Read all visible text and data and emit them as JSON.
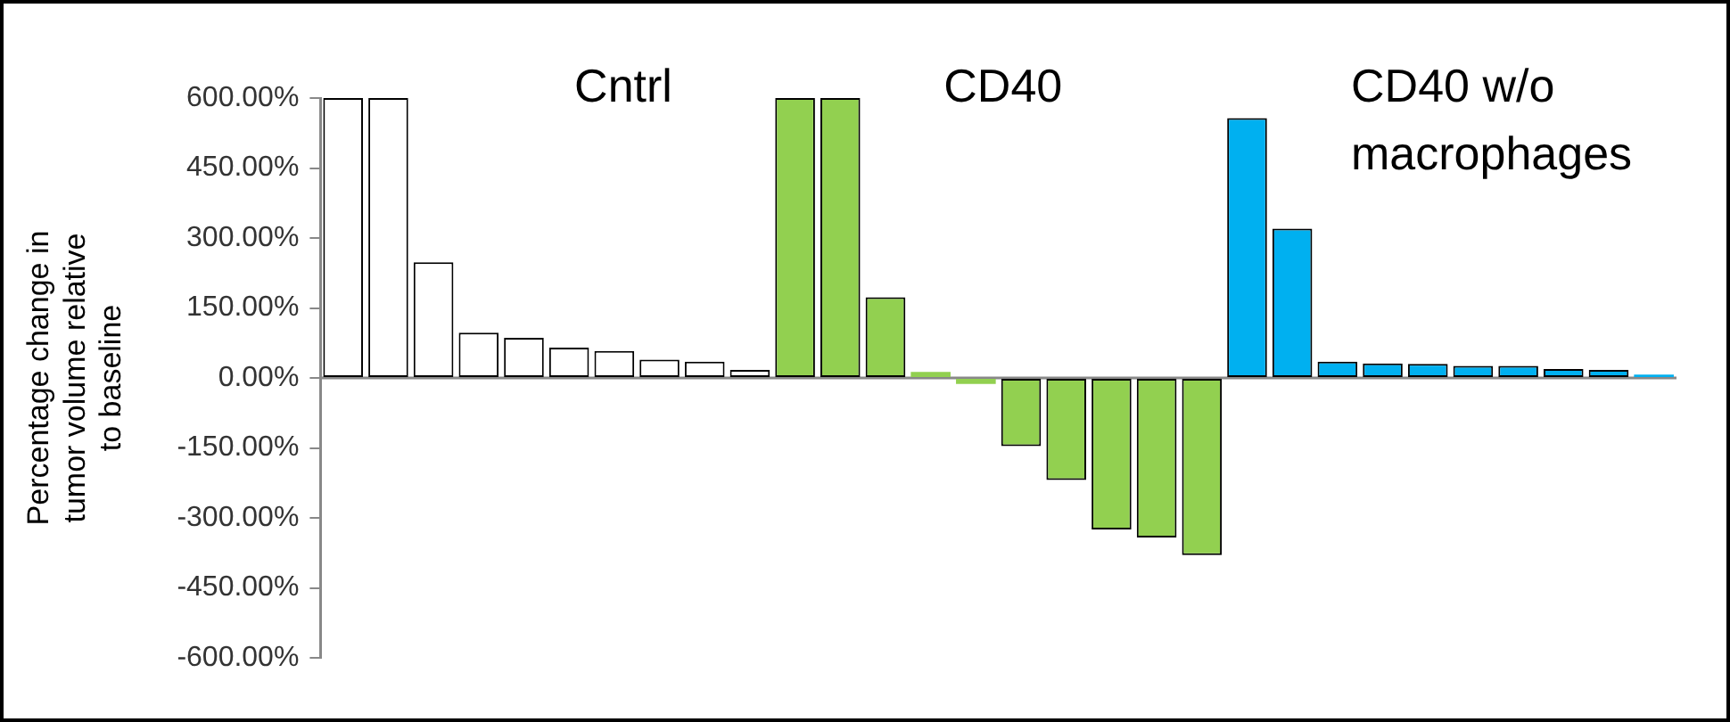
{
  "chart_data": {
    "type": "bar",
    "ylabel": "Percentage change in tumor volume relative to baseline",
    "categories": [
      null,
      null,
      null,
      null,
      null,
      null,
      null,
      null,
      null,
      null,
      null,
      null,
      null,
      null,
      null,
      null,
      null,
      null,
      null,
      null,
      null,
      null,
      null,
      null,
      null,
      null,
      null,
      null,
      null,
      null
    ],
    "values": [
      600,
      600,
      248,
      97,
      86,
      65,
      58,
      39,
      35,
      17,
      600,
      600,
      173,
      13,
      -13,
      -146,
      -219,
      -325,
      -342,
      -380,
      557,
      320,
      35,
      31,
      30,
      26,
      26,
      19,
      17,
      7
    ],
    "colors": [
      "#ffffff",
      "#ffffff",
      "#ffffff",
      "#ffffff",
      "#ffffff",
      "#ffffff",
      "#ffffff",
      "#ffffff",
      "#ffffff",
      "#ffffff",
      "#92d050",
      "#92d050",
      "#92d050",
      "#92d050",
      "#92d050",
      "#92d050",
      "#92d050",
      "#92d050",
      "#92d050",
      "#92d050",
      "#00b0f0",
      "#00b0f0",
      "#00b0f0",
      "#00b0f0",
      "#00b0f0",
      "#00b0f0",
      "#00b0f0",
      "#00b0f0",
      "#00b0f0",
      "#00b0f0"
    ],
    "ylim": [
      -600,
      600
    ],
    "yticks": [
      {
        "value": -600,
        "label": "-600.00%"
      },
      {
        "value": -450,
        "label": "-450.00%"
      },
      {
        "value": -300,
        "label": "-300.00%"
      },
      {
        "value": -150,
        "label": "-150.00%"
      },
      {
        "value": 0,
        "label": "0.00%"
      },
      {
        "value": 150,
        "label": "150.00%"
      },
      {
        "value": 300,
        "label": "300.00%"
      },
      {
        "value": 450,
        "label": "450.00%"
      },
      {
        "value": 600,
        "label": "600.00%"
      }
    ],
    "annotations": [
      "Cntrl",
      "CD40",
      "CD40 w/o macrophages"
    ],
    "ref_lines": [
      {
        "axis": "y",
        "value": 0,
        "color": "#888888"
      }
    ],
    "grid": false,
    "legend": false
  }
}
